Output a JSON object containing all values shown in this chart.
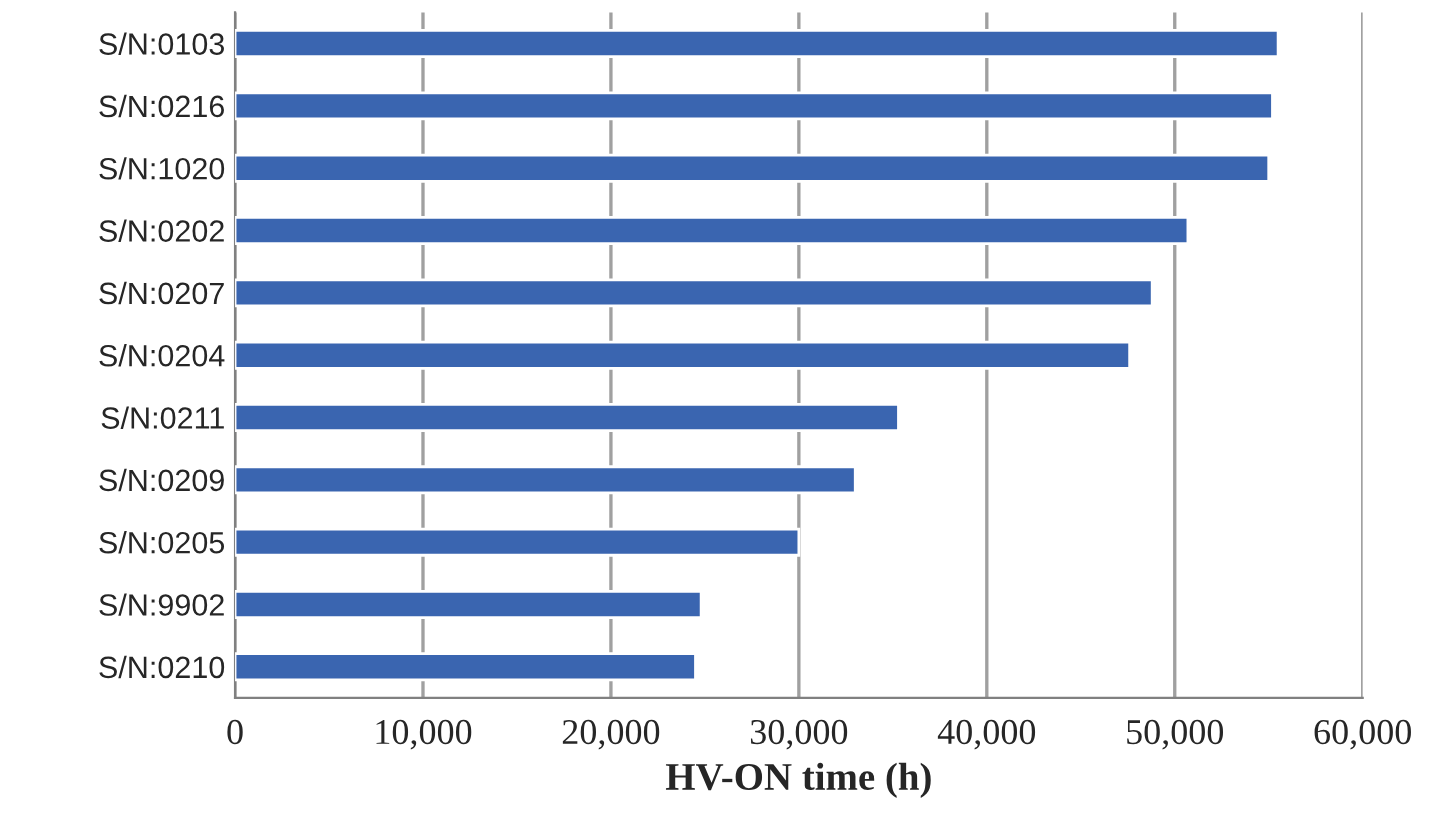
{
  "chart_data": {
    "type": "bar",
    "orientation": "horizontal",
    "xlabel": "HV-ON time (h)",
    "categories": [
      "S/N:0103",
      "S/N:0216",
      "S/N:1020",
      "S/N:0202",
      "S/N:0207",
      "S/N:0204",
      "S/N:0211",
      "S/N:0209",
      "S/N:0205",
      "S/N:9902",
      "S/N:0210"
    ],
    "values": [
      55500,
      55200,
      55000,
      50700,
      48800,
      47600,
      35300,
      33000,
      30000,
      24800,
      24500
    ],
    "color": "#3a65b0",
    "xlim": [
      0,
      60000
    ],
    "xticks": [
      {
        "value": 0,
        "label": "0"
      },
      {
        "value": 10000,
        "label": "10,000"
      },
      {
        "value": 20000,
        "label": "20,000"
      },
      {
        "value": 30000,
        "label": "30,000"
      },
      {
        "value": 40000,
        "label": "40,000"
      },
      {
        "value": 50000,
        "label": "50,000"
      },
      {
        "value": 60000,
        "label": "60,000"
      }
    ],
    "grid": "x"
  }
}
